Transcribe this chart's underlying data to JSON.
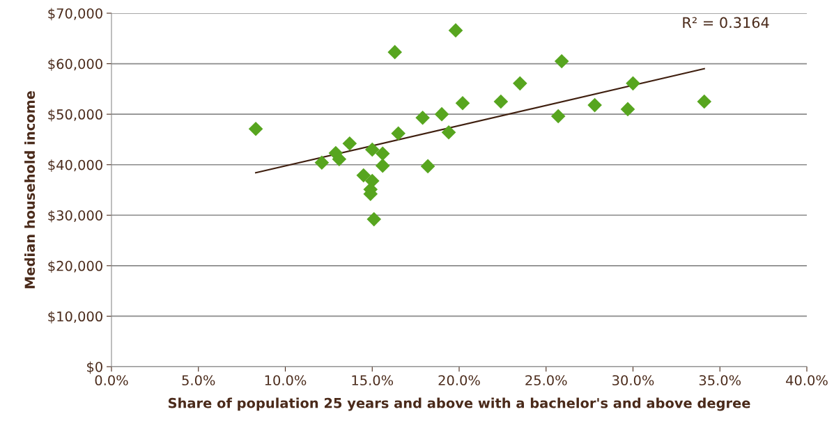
{
  "chart_data": {
    "type": "scatter",
    "xlabel": "Share of population 25 years and above with a bachelor's and above degree",
    "ylabel": "Median household income",
    "xlim": [
      0,
      40
    ],
    "xticks": [
      {
        "value": 0,
        "label": "0.0%"
      },
      {
        "value": 5,
        "label": "5.0%"
      },
      {
        "value": 10,
        "label": "10.0%"
      },
      {
        "value": 15,
        "label": "15.0%"
      },
      {
        "value": 20,
        "label": "20.0%"
      },
      {
        "value": 25,
        "label": "25.0%"
      },
      {
        "value": 30,
        "label": "30.0%"
      },
      {
        "value": 35,
        "label": "35.0%"
      },
      {
        "value": 40,
        "label": "40.0%"
      }
    ],
    "ylim": [
      0,
      70000
    ],
    "yticks": [
      {
        "value": 0,
        "label": "$0"
      },
      {
        "value": 10000,
        "label": "$10,000"
      },
      {
        "value": 20000,
        "label": "$20,000"
      },
      {
        "value": 30000,
        "label": "$30,000"
      },
      {
        "value": 40000,
        "label": "$40,000"
      },
      {
        "value": 50000,
        "label": "$50,000"
      },
      {
        "value": 60000,
        "label": "$60,000"
      },
      {
        "value": 70000,
        "label": "$70,000"
      }
    ],
    "grid": "y",
    "annotations": [
      "R² = 0.3164"
    ],
    "series": [
      {
        "marker": "diamond",
        "color": "#57a51f",
        "x": [
          8.3,
          12.1,
          12.9,
          13.1,
          13.7,
          14.5,
          15.0,
          14.9,
          14.9,
          15.0,
          15.6,
          15.6,
          15.1,
          16.3,
          19.8,
          16.5,
          17.9,
          19.0,
          18.2,
          19.4,
          20.2,
          22.4,
          23.5,
          25.7,
          25.9,
          27.8,
          29.7,
          30.0,
          34.1
        ],
        "values": [
          47100,
          40400,
          42300,
          41100,
          44200,
          37900,
          36800,
          35100,
          34200,
          43000,
          42200,
          39800,
          29200,
          62300,
          66600,
          46200,
          49300,
          50000,
          39700,
          46400,
          52200,
          52500,
          56100,
          49600,
          60500,
          51800,
          51000,
          56100,
          52500
        ]
      },
      {
        "type": "line",
        "marker": "none",
        "color": "#3f1f0f",
        "x": [
          8.3,
          34.1
        ],
        "values": [
          38400,
          59000
        ]
      }
    ]
  }
}
